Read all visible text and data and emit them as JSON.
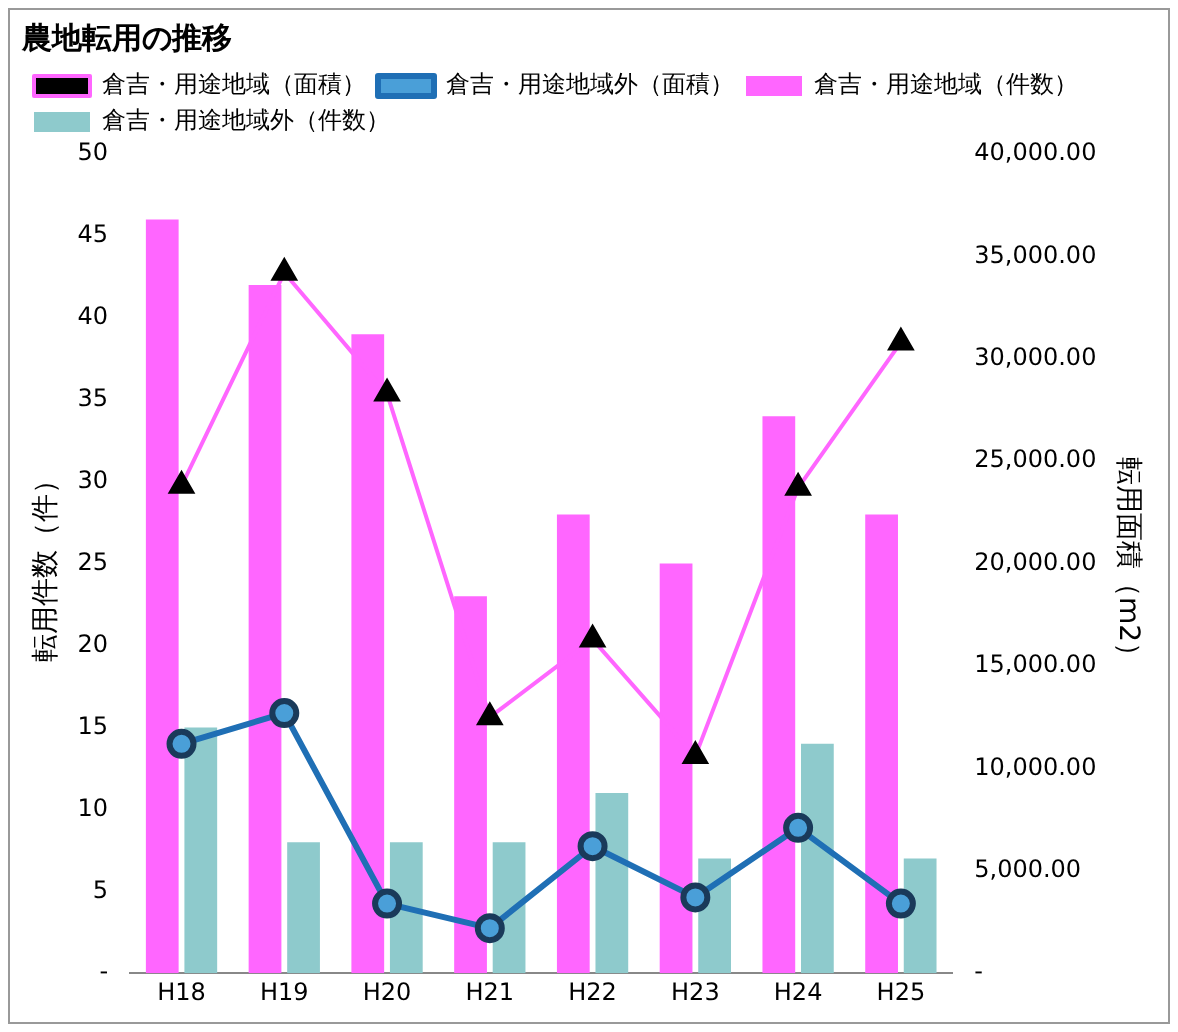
{
  "chart_data": {
    "type": "bar",
    "title": "農地転用の推移",
    "ylabel": "転用件数（件）",
    "y2label": "転用面積（m2）",
    "categories": [
      "H18",
      "H19",
      "H20",
      "H21",
      "H22",
      "H23",
      "H24",
      "H25"
    ],
    "series": [
      {
        "name": "倉吉・用途地域（件数）",
        "color": "#ff66ff",
        "values": [
          46,
          42,
          39,
          23,
          28,
          25,
          34,
          28
        ]
      },
      {
        "name": "倉吉・用途地域外（件数）",
        "color": "#8ecacc",
        "values": [
          15,
          8,
          8,
          8,
          11,
          7,
          14,
          7
        ]
      },
      {
        "name": "倉吉・用途地域（面積）",
        "type": "line",
        "axis": "y2",
        "color": "#ff66ff",
        "marker": "triangle",
        "values": [
          23800,
          34200,
          28300,
          12500,
          16300,
          10600,
          23700,
          30800
        ]
      },
      {
        "name": "倉吉・用途地域外（面積）",
        "type": "line",
        "axis": "y2",
        "color": "#1f6fb5",
        "marker": "circle",
        "values": [
          11200,
          12700,
          3400,
          2200,
          6200,
          3700,
          7100,
          3400
        ]
      }
    ],
    "ylim": [
      0,
      50
    ],
    "yticks": [
      {
        "value": 0,
        "label": "-"
      },
      5,
      10,
      15,
      20,
      25,
      30,
      35,
      40,
      45,
      50
    ],
    "y2lim": [
      0,
      40000
    ],
    "y2ticks": [
      {
        "value": 0,
        "label": "-"
      },
      {
        "value": 5000,
        "label": "5,000.00"
      },
      {
        "value": 10000,
        "label": "10,000.00"
      },
      {
        "value": 15000,
        "label": "15,000.00"
      },
      {
        "value": 20000,
        "label": "20,000.00"
      },
      {
        "value": 25000,
        "label": "25,000.00"
      },
      {
        "value": 30000,
        "label": "30,000.00"
      },
      {
        "value": 35000,
        "label": "35,000.00"
      },
      {
        "value": 40000,
        "label": "40,000.00"
      }
    ],
    "grid": false,
    "legend": "top"
  }
}
